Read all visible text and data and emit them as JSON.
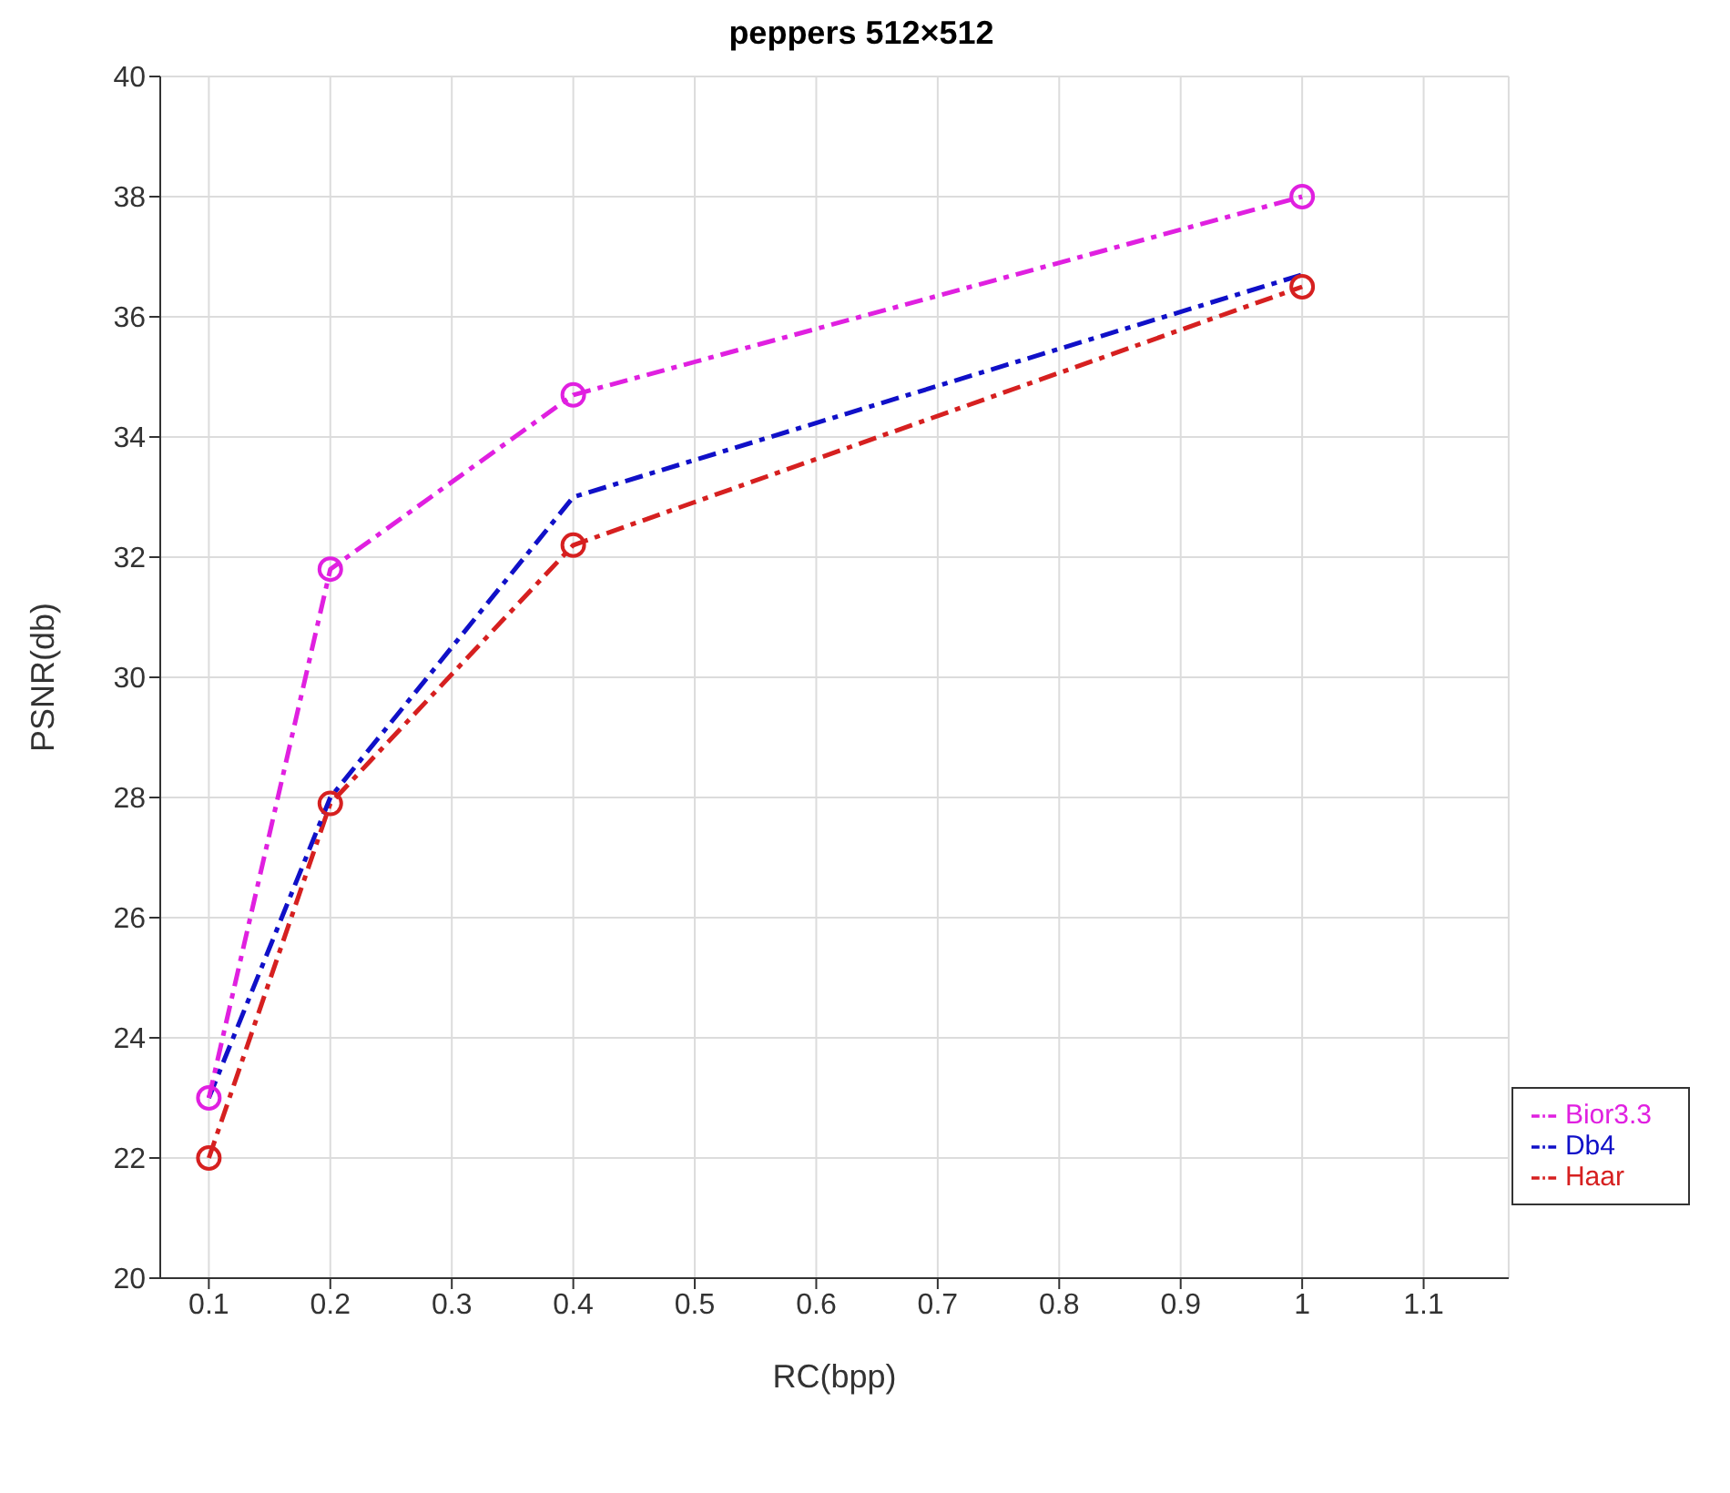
{
  "chart_data": {
    "type": "line",
    "title": "peppers 512×512",
    "xlabel": "RC(bpp)",
    "ylabel": "PSNR(db)",
    "x": [
      0.1,
      0.2,
      0.4,
      1
    ],
    "series": [
      {
        "name": "Haar",
        "color": "#d62020",
        "values": [
          22,
          27.9,
          32.2,
          36.5
        ],
        "marker": "circle"
      },
      {
        "name": "Db4",
        "color": "#1010c8",
        "values": [
          23,
          28,
          33,
          36.7
        ],
        "marker": "none"
      },
      {
        "name": "Bior3.3",
        "color": "#e020e0",
        "values": [
          23,
          31.8,
          34.7,
          38
        ],
        "marker": "circle"
      }
    ],
    "xlim": [
      0.06,
      1.17
    ],
    "xticks": [
      0.1,
      0.2,
      0.3,
      0.4,
      0.5,
      0.6,
      0.7,
      0.8,
      0.9,
      1,
      1.1
    ],
    "ylim": [
      20,
      40
    ],
    "yticks": [
      20,
      22,
      24,
      26,
      28,
      30,
      32,
      34,
      36,
      38,
      40
    ],
    "grid": true,
    "legend": "bottom right",
    "line_style": "dashed"
  }
}
